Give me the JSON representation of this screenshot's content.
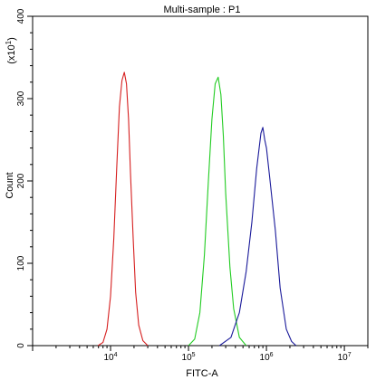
{
  "chart_data": {
    "type": "line",
    "title": "Multi-sample : P1",
    "xlabel": "FITC-A",
    "ylabel": "Count",
    "y_multiplier": "(x10",
    "y_multiplier_exp": "1",
    "y_multiplier_close": ")",
    "x_scale": "log",
    "xlim": [
      1000,
      20000000
    ],
    "ylim": [
      0,
      400
    ],
    "grid": false,
    "x_ticks": [
      {
        "value": 10000,
        "base": "10",
        "exp": "4"
      },
      {
        "value": 100000,
        "base": "10",
        "exp": "5"
      },
      {
        "value": 1000000,
        "base": "10",
        "exp": "6"
      },
      {
        "value": 10000000,
        "base": "10",
        "exp": "7"
      }
    ],
    "y_ticks": [
      {
        "value": 0,
        "label": "0"
      },
      {
        "value": 100,
        "label": "100"
      },
      {
        "value": 200,
        "label": "200"
      },
      {
        "value": 300,
        "label": "300"
      },
      {
        "value": 400,
        "label": "400"
      }
    ],
    "series": [
      {
        "color": "#d62020",
        "x": [
          6900,
          8000,
          9000,
          10000,
          11000,
          12000,
          13000,
          14000,
          15000,
          16000,
          17000,
          18000,
          19500,
          21000,
          23000,
          26000,
          30000
        ],
        "y": [
          0,
          4,
          20,
          60,
          130,
          215,
          290,
          322,
          332,
          318,
          275,
          210,
          130,
          65,
          25,
          6,
          0
        ]
      },
      {
        "color": "#22cc22",
        "x": [
          100000,
          120000,
          140000,
          160000,
          180000,
          200000,
          220000,
          240000,
          260000,
          280000,
          300000,
          340000,
          380000,
          450000,
          550000
        ],
        "y": [
          0,
          8,
          40,
          110,
          200,
          275,
          318,
          326,
          305,
          255,
          185,
          95,
          45,
          10,
          0
        ]
      },
      {
        "color": "#1a1a9a",
        "x": [
          250000,
          350000,
          450000,
          550000,
          650000,
          750000,
          850000,
          900000,
          950000,
          1000000,
          1100000,
          1300000,
          1500000,
          1800000,
          2100000,
          2400000
        ],
        "y": [
          0,
          10,
          40,
          90,
          150,
          215,
          258,
          265,
          250,
          240,
          205,
          140,
          70,
          20,
          5,
          0
        ]
      }
    ]
  }
}
